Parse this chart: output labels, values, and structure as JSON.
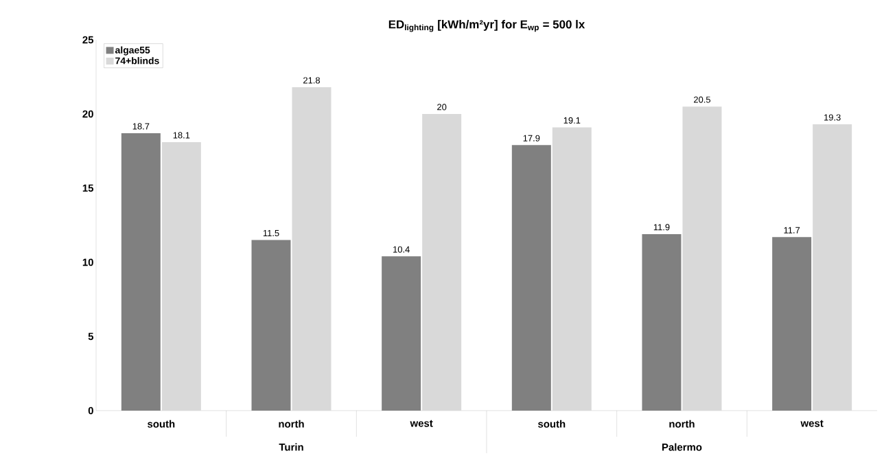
{
  "chart_data": {
    "type": "bar",
    "title": "ED$_{lighting}$ [kWh/m²yr]  for E$_{wp}$ = 500 lx",
    "categories": [
      "south",
      "north",
      "west",
      "south",
      "north",
      "west"
    ],
    "series": [
      {
        "name": "algae55",
        "color": "#808080",
        "values": [
          18.7,
          11.5,
          10.4,
          17.9,
          11.9,
          11.7
        ]
      },
      {
        "name": "74+blinds",
        "color": "#d9d9d9",
        "values": [
          18.1,
          21.8,
          20,
          19.1,
          20.5,
          19.3
        ]
      }
    ],
    "ylim": [
      0,
      25
    ],
    "yticks": [
      0,
      5,
      10,
      15,
      20,
      25
    ],
    "grid": false,
    "legend": "top left",
    "data_labels": true,
    "annotations": [
      "Turin",
      "Palermo"
    ]
  }
}
